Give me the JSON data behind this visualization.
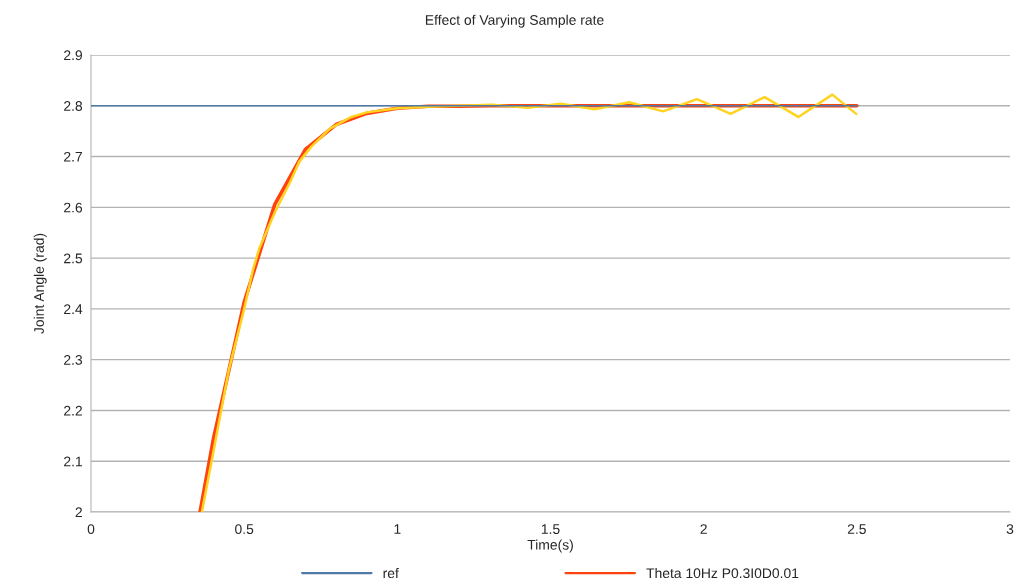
{
  "chart_data": {
    "type": "line",
    "title": "Effect of Varying Sample rate",
    "xlabel": "Time(s)",
    "ylabel": "Joint Angle (rad)",
    "xlim": [
      0,
      3
    ],
    "xticks": [
      0,
      0.5,
      1,
      1.5,
      2,
      2.5,
      3
    ],
    "ylim": [
      2,
      2.9
    ],
    "yticks": [
      2,
      2.1,
      2.2,
      2.3,
      2.4,
      2.5,
      2.6,
      2.7,
      2.8,
      2.9
    ],
    "grid": "y",
    "legend": "bottom",
    "marker": "none",
    "line_style": "solid",
    "series": [
      {
        "name": "ref",
        "color": "#4f7aa8",
        "x": [
          0,
          2.5
        ],
        "values": [
          2.8,
          2.8
        ]
      },
      {
        "color": "#ffd320",
        "x": [
          0.362,
          0.4,
          0.45,
          0.5,
          0.53,
          0.55,
          0.6,
          0.65,
          0.68,
          0.72,
          0.78,
          0.85,
          0.9,
          1.0,
          1.1,
          1.2,
          1.31,
          1.426,
          1.534,
          1.645,
          1.757,
          1.868,
          1.978,
          2.088,
          2.199,
          2.309,
          2.42,
          2.498
        ],
        "values": [
          2.0,
          2.12,
          2.28,
          2.4,
          2.48,
          2.52,
          2.59,
          2.65,
          2.69,
          2.72,
          2.755,
          2.778,
          2.787,
          2.795,
          2.798,
          2.8,
          2.802,
          2.796,
          2.804,
          2.793,
          2.807,
          2.789,
          2.813,
          2.784,
          2.817,
          2.778,
          2.822,
          2.784
        ]
      },
      {
        "name": "Theta 10Hz P0.3I0D0.01",
        "color": "#ff420e",
        "x": [
          0.356,
          0.4,
          0.5,
          0.6,
          0.7,
          0.8,
          0.9,
          1.0,
          1.1,
          1.2,
          1.3,
          1.4,
          1.5,
          1.6,
          1.7,
          1.8,
          1.9,
          2.0,
          2.1,
          2.2,
          2.3,
          2.4,
          2.5
        ],
        "values": [
          2.0,
          2.145,
          2.413,
          2.606,
          2.714,
          2.763,
          2.785,
          2.795,
          2.799,
          2.799,
          2.8,
          2.8,
          2.8,
          2.8,
          2.8,
          2.8,
          2.8,
          2.8,
          2.8,
          2.8,
          2.8,
          2.8,
          2.8
        ]
      }
    ]
  }
}
